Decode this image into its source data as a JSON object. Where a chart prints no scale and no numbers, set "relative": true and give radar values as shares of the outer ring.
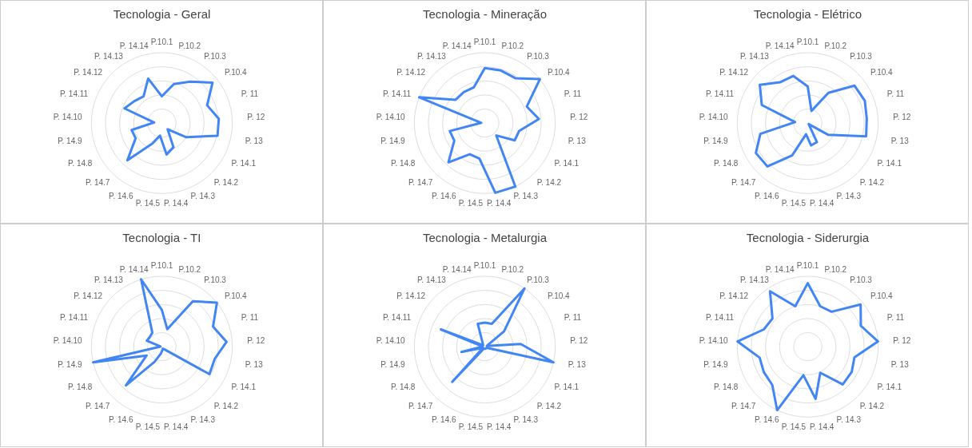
{
  "chart_data": [
    {
      "type": "radar",
      "title": "Tecnologia - Geral",
      "relative": true,
      "grid": true,
      "categories": [
        "P.10.1",
        "P.10.2",
        "P.10.3",
        "P.10.4",
        "P. 11",
        "P. 12",
        "P. 13",
        "P. 14.1",
        "P. 14.2",
        "P. 14.3",
        "P. 14.4",
        "P. 14.5",
        "P. 14.6",
        "P. 14.7",
        "P. 14.8",
        "P. 14.9",
        "P. 14.10",
        "P. 14.11",
        "P. 14.12",
        "P. 14.13",
        "P. 14.14"
      ],
      "series": [
        {
          "color": "#4285f4",
          "values": [
            0.38,
            0.58,
            0.71,
            0.92,
            0.69,
            0.81,
            0.81,
            0.4,
            0.12,
            0.38,
            0.45,
            0.18,
            0.33,
            0.72,
            0.43,
            0.44,
            0.11,
            0.57,
            0.5,
            0.46,
            0.66
          ]
        }
      ]
    },
    {
      "type": "radar",
      "title": "Tecnologia - Mineração",
      "relative": true,
      "grid": true,
      "categories": [
        "P.10.1",
        "P.10.2",
        "P.10.3",
        "P.10.4",
        "P. 11",
        "P. 12",
        "P. 13",
        "P. 14.1",
        "P. 14.2",
        "P. 14.3",
        "P. 14.4",
        "P. 14.5",
        "P. 14.6",
        "P. 14.7",
        "P. 14.8",
        "P. 14.9",
        "P. 14.10",
        "P. 14.11",
        "P. 14.12",
        "P. 14.13",
        "P. 14.14"
      ],
      "series": [
        {
          "color": "#4285f4",
          "values": [
            0.78,
            0.78,
            0.77,
            1.0,
            0.64,
            0.77,
            0.5,
            0.49,
            0.24,
            1.0,
            1.0,
            0.51,
            0.49,
            0.76,
            0.5,
            0.51,
            0.05,
            1.0,
            0.53,
            0.53,
            0.53
          ]
        }
      ]
    },
    {
      "type": "radar",
      "title": "Tecnologia - Elétrico",
      "relative": true,
      "grid": true,
      "categories": [
        "P.10.1",
        "P.10.2",
        "P.10.3",
        "P.10.4",
        "P. 11",
        "P. 12",
        "P. 13",
        "P. 14.1",
        "P. 14.2",
        "P. 14.3",
        "P. 14.4",
        "P. 14.5",
        "P. 14.6",
        "P. 14.7",
        "P. 14.8",
        "P. 14.9",
        "P. 14.10",
        "P. 14.11",
        "P. 14.12",
        "P. 14.13",
        "P. 14.14"
      ],
      "series": [
        {
          "color": "#4285f4",
          "values": [
            0.52,
            0.18,
            0.52,
            0.85,
            0.87,
            0.84,
            0.85,
            0.33,
            0.02,
            0.3,
            0.32,
            0.16,
            0.51,
            0.84,
            0.85,
            0.69,
            0.18,
            0.7,
            0.87,
            0.7,
            0.7
          ]
        }
      ]
    },
    {
      "type": "radar",
      "title": "Tecnologia - TI",
      "relative": true,
      "grid": true,
      "categories": [
        "P.10.1",
        "P.10.2",
        "P.10.3",
        "P.10.4",
        "P. 11",
        "P. 12",
        "P. 13",
        "P. 14.1",
        "P. 14.2",
        "P. 14.3",
        "P. 14.4",
        "P. 14.5",
        "P. 14.6",
        "P. 14.7",
        "P. 14.8",
        "P. 14.9",
        "P. 14.10",
        "P. 14.11",
        "P. 14.12",
        "P. 14.13",
        "P. 14.14"
      ],
      "series": [
        {
          "color": "#4285f4",
          "values": [
            0.52,
            0.26,
            0.78,
            1.0,
            0.78,
            0.92,
            0.77,
            0.78,
            0.05,
            0.03,
            0.05,
            0.1,
            0.24,
            0.75,
            0.25,
            1.0,
            0.02,
            0.23,
            0.22,
            0.24,
            1.0
          ]
        }
      ]
    },
    {
      "type": "radar",
      "title": "Tecnologia - Metalurgia",
      "relative": true,
      "grid": true,
      "categories": [
        "P.10.1",
        "P.10.2",
        "P.10.3",
        "P.10.4",
        "P. 11",
        "P. 12",
        "P. 13",
        "P. 14.1",
        "P. 14.2",
        "P. 14.3",
        "P. 14.4",
        "P. 14.5",
        "P. 14.6",
        "P. 14.7",
        "P. 14.8",
        "P. 14.9",
        "P. 14.10",
        "P. 14.11",
        "P. 14.12",
        "P. 14.13",
        "P. 14.14"
      ],
      "series": [
        {
          "color": "#4285f4",
          "values": [
            0.34,
            0.34,
            1.0,
            0.35,
            0.03,
            0.51,
            1.0,
            0.03,
            0.03,
            0.03,
            0.03,
            0.03,
            0.03,
            0.68,
            0.03,
            0.34,
            0.03,
            0.67,
            0.03,
            0.05,
            0.34
          ]
        }
      ]
    },
    {
      "type": "radar",
      "title": "Tecnologia - Siderurgia",
      "relative": true,
      "grid": true,
      "categories": [
        "P.10.1",
        "P.10.2",
        "P.10.3",
        "P.10.4",
        "P. 11",
        "P. 12",
        "P. 13",
        "P. 14.1",
        "P. 14.2",
        "P. 14.3",
        "P. 14.4",
        "P. 14.5",
        "P. 14.6",
        "P. 14.7",
        "P. 14.8",
        "P. 14.9",
        "P. 14.10",
        "P. 14.11",
        "P. 14.12",
        "P. 14.13",
        "P. 14.14"
      ],
      "series": [
        {
          "color": "#4285f4",
          "values": [
            0.9,
            0.6,
            0.6,
            0.96,
            0.81,
            1.0,
            0.68,
            0.72,
            0.73,
            0.41,
            0.75,
            0.41,
            1.0,
            0.74,
            0.72,
            0.7,
            1.0,
            0.67,
            0.64,
            0.95,
            0.6
          ]
        }
      ]
    }
  ]
}
